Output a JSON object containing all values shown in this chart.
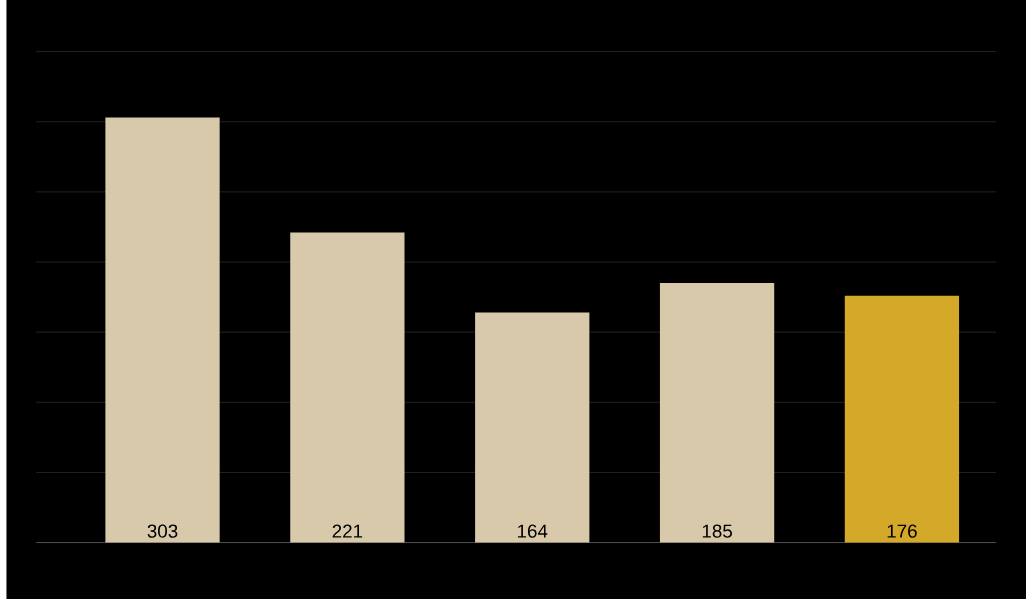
{
  "chart_data": {
    "type": "bar",
    "categories": [
      null,
      null,
      null,
      null,
      null
    ],
    "values": [
      303,
      221,
      164,
      185,
      176
    ],
    "colors": [
      "#d8c9ab",
      "#d8c9ab",
      "#d8c9ab",
      "#d8c9ab",
      "#d4a92a"
    ],
    "grid": "y",
    "data_labels": true,
    "tick_labels": false
  }
}
